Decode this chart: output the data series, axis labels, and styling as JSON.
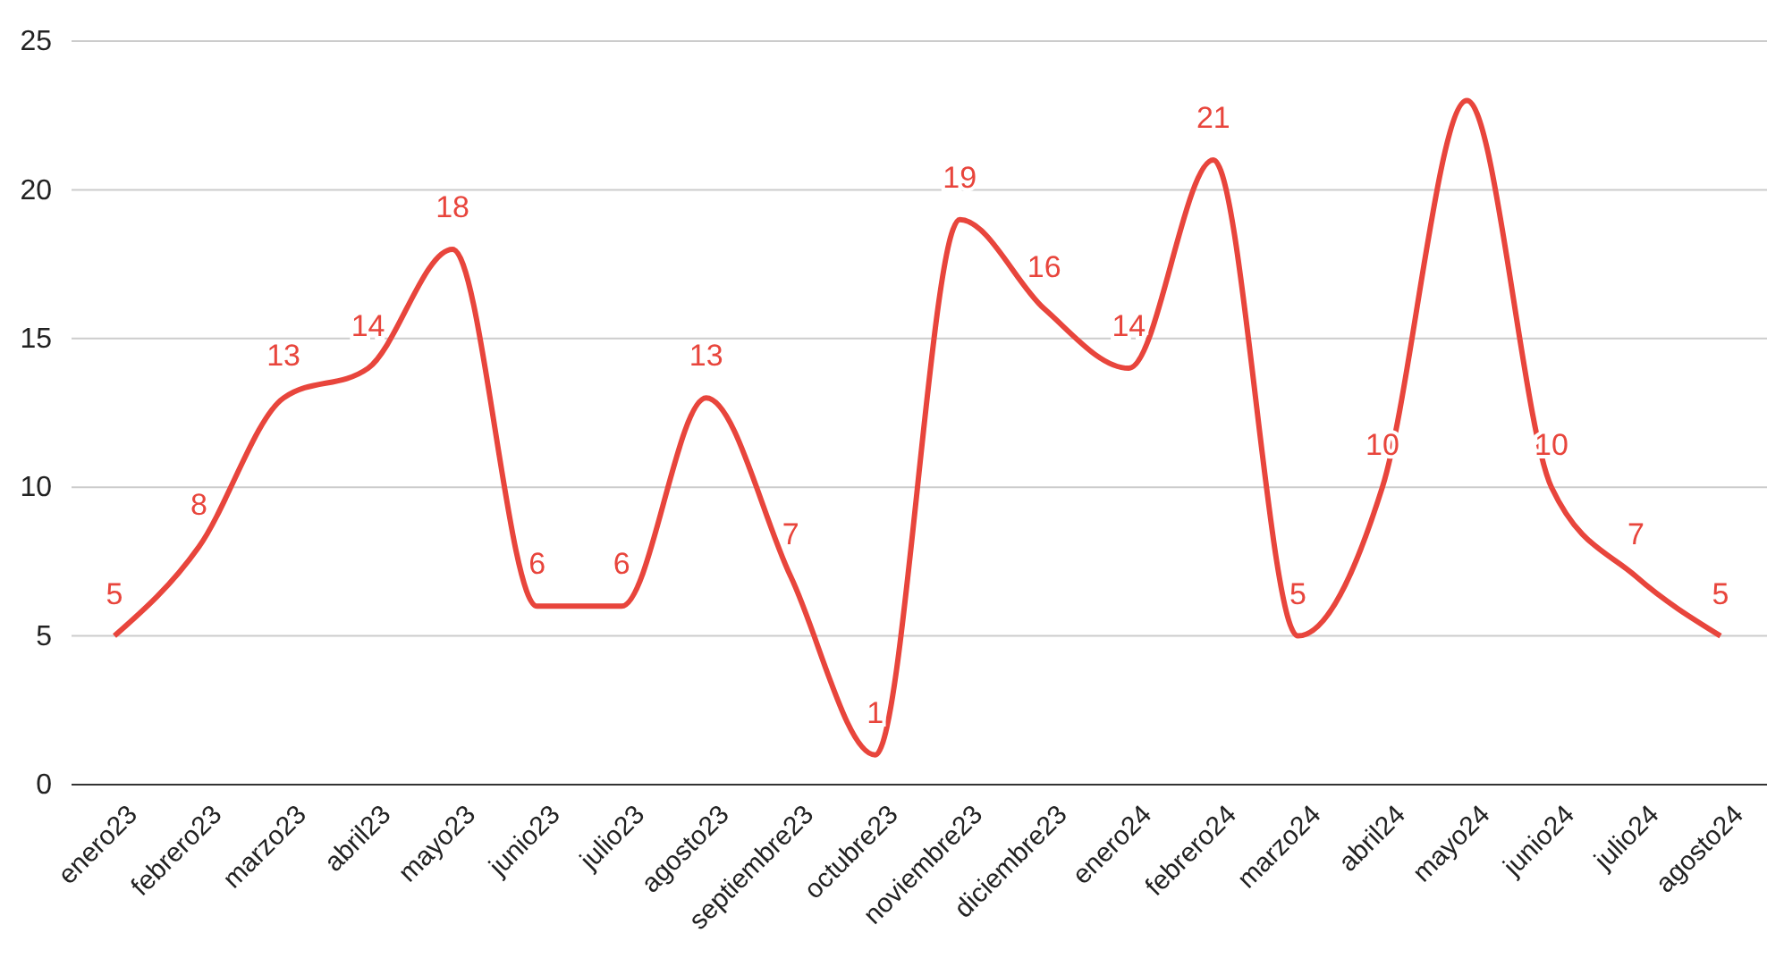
{
  "chart_data": {
    "type": "line",
    "categories": [
      "enero23",
      "febrero23",
      "marzo23",
      "abril23",
      "mayo23",
      "junio23",
      "julio23",
      "agosto23",
      "septiembre23",
      "octubre23",
      "noviembre23",
      "diciembre23",
      "enero24",
      "febrero24",
      "marzo24",
      "abril24",
      "mayo24",
      "junio24",
      "julio24",
      "agosto24"
    ],
    "series": [
      {
        "color": "#e8453c",
        "values": [
          5,
          8,
          13,
          14,
          18,
          6,
          6,
          13,
          7,
          1,
          19,
          16,
          14,
          21,
          5,
          10,
          23,
          10,
          7,
          5
        ],
        "value_labels": [
          "5",
          "8",
          "13",
          "14",
          "18",
          "6",
          "6",
          "13",
          "7",
          "1",
          "19",
          "16",
          "14",
          "21",
          "5",
          "10",
          null,
          "10",
          "7",
          "5"
        ]
      }
    ],
    "ylim": [
      0,
      25
    ],
    "yticks": [
      0,
      5,
      10,
      15,
      20,
      25
    ],
    "grid": "y",
    "marker": "none",
    "line_style": "solid"
  }
}
